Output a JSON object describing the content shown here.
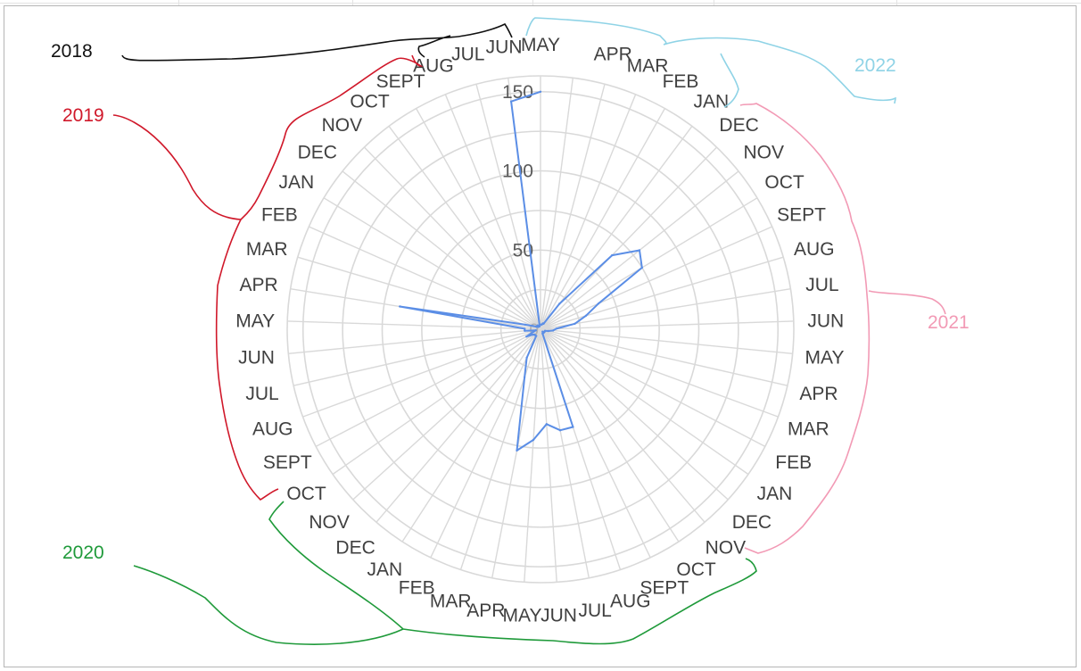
{
  "chart_data": {
    "type": "radar",
    "title": "",
    "categories": [
      "MAY",
      "JUN",
      "JUL",
      "AUG",
      "SEPT",
      "OCT",
      "NOV",
      "DEC",
      "JAN",
      "FEB",
      "MAR",
      "APR",
      "MAY",
      "JUN",
      "JUL",
      "AUG",
      "SEPT",
      "OCT",
      "NOV",
      "DEC",
      "JAN",
      "FEB",
      "MAR",
      "APR",
      "MAY",
      "JUN",
      "JUL",
      "AUG",
      "SEPT",
      "OCT",
      "NOV",
      "DEC",
      "JAN",
      "FEB",
      "MAR",
      "APR",
      "MAY",
      "JUN",
      "JUL",
      "AUG",
      "SEPT",
      "OCT",
      "NOV",
      "DEC",
      "JAN",
      "FEB",
      "MAR",
      "APR",
      "MAY"
    ],
    "series": [
      {
        "values": [
          150,
          145,
          2,
          2,
          2,
          3,
          2,
          3,
          3,
          5,
          10,
          90,
          10,
          10,
          3,
          5,
          10,
          6,
          5,
          5,
          5,
          20,
          32,
          78,
          70,
          60,
          65,
          65,
          3,
          3,
          2,
          3,
          3,
          3,
          3,
          5,
          8,
          10,
          22,
          30,
          40,
          75,
          80,
          65,
          20,
          4,
          4,
          3,
          3
        ]
      }
    ],
    "rticks": [
      "50",
      "100",
      "150"
    ],
    "rlim": [
      0,
      160
    ],
    "grid": true,
    "center_label": "0",
    "colors": {
      "series_line": "#5b8ee6",
      "grid": "#d9d9d9",
      "tick_text": "#595959",
      "category_text": "#404040"
    },
    "annotations": [
      {
        "id": "y2018",
        "text": "2018",
        "color": "#111111"
      },
      {
        "id": "y2019",
        "text": "2019",
        "color": "#d0182a"
      },
      {
        "id": "y2020",
        "text": "2020",
        "color": "#1f9a3a"
      },
      {
        "id": "y2021",
        "text": "2021",
        "color": "#f29ab5"
      },
      {
        "id": "y2022",
        "text": "2022",
        "color": "#8fd3e6"
      }
    ]
  }
}
